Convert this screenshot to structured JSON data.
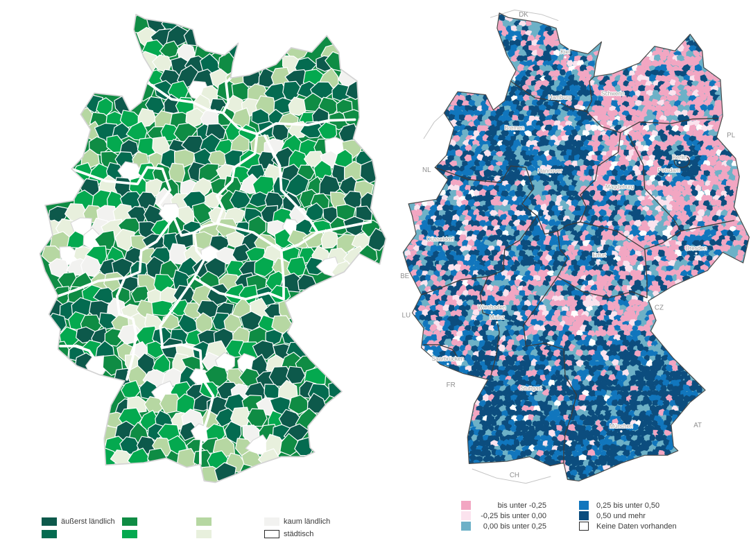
{
  "left_map": {
    "legend": {
      "items": [
        {
          "color": "#0d594b",
          "label": "äußerst ländlich",
          "border": false
        },
        {
          "color": "#046b50",
          "label": "",
          "border": false
        },
        {
          "color": "#0f8c44",
          "label": "",
          "border": false
        },
        {
          "color": "#04a94f",
          "label": "",
          "border": false
        },
        {
          "color": "#b6d7a2",
          "label": "",
          "border": false
        },
        {
          "color": "#e8f0dd",
          "label": "",
          "border": false
        },
        {
          "color": "#f2f2f0",
          "label": "kaum ländlich",
          "border": false
        },
        {
          "color": "#ffffff",
          "label": "städtisch",
          "border": true
        }
      ]
    }
  },
  "right_map": {
    "legend": {
      "left_column": [
        {
          "color": "#f2a6c2",
          "label": "bis unter -0,25",
          "border": false
        },
        {
          "color": "#fbe3ee",
          "label": "-0,25 bis unter 0,00",
          "border": false
        },
        {
          "color": "#6db1c7",
          "label": "0,00 bis unter 0,25",
          "border": false
        }
      ],
      "right_column": [
        {
          "color": "#1176bd",
          "label": "0,25 bis unter 0,50",
          "border": false
        },
        {
          "color": "#0c4d7e",
          "label": "0,50 und mehr",
          "border": false
        },
        {
          "color": "#ffffff",
          "label": "Keine Daten vorhanden",
          "border": true
        }
      ]
    },
    "city_labels": [
      "Kiel",
      "Hamburg",
      "Schwerin",
      "Bremen",
      "Hannover",
      "Berlin",
      "Potsdam",
      "Magdeburg",
      "Düsseldorf",
      "Erfurt",
      "Dresden",
      "Wiesbaden",
      "Mainz",
      "Saarbrücken",
      "Stuttgart",
      "München"
    ],
    "neighbor_labels": [
      "DK",
      "PL",
      "NL",
      "BE",
      "LU",
      "CZ",
      "FR",
      "CH",
      "AT"
    ]
  },
  "colors": {
    "left_outline": "#d4d4d4",
    "left_state_border": "#ffffff",
    "right_outline": "#4a4a4a",
    "right_state_border": "#3b3b3b",
    "city_label_gray": "#9b9b9b",
    "country_label_gray": "#8f8f8f",
    "white_speckle": "#ffffff"
  }
}
